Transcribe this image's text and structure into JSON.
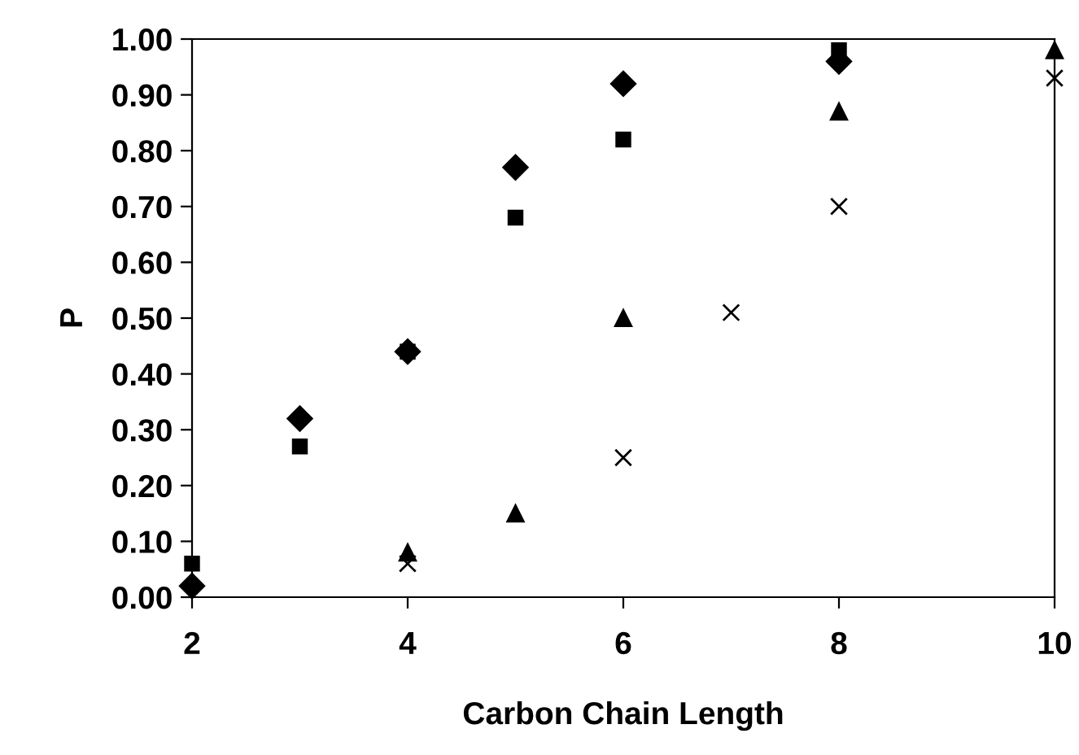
{
  "chart_data": {
    "type": "scatter",
    "xlabel": "Carbon Chain Length",
    "ylabel": "P",
    "xlim": [
      2,
      10
    ],
    "xticks": [
      2,
      4,
      6,
      8,
      10
    ],
    "ylim": [
      0,
      1
    ],
    "yticks": [
      {
        "value": 0,
        "label": "0.00"
      },
      {
        "value": 0.1,
        "label": "0.10"
      },
      {
        "value": 0.2,
        "label": "0.20"
      },
      {
        "value": 0.3,
        "label": "0.30"
      },
      {
        "value": 0.4,
        "label": "0.40"
      },
      {
        "value": 0.5,
        "label": "0.50"
      },
      {
        "value": 0.6,
        "label": "0.60"
      },
      {
        "value": 0.7,
        "label": "0.70"
      },
      {
        "value": 0.8,
        "label": "0.80"
      },
      {
        "value": 0.9,
        "label": "0.90"
      },
      {
        "value": 1,
        "label": "1.00"
      }
    ],
    "grid": false,
    "legend": false,
    "series": [
      {
        "color": "#000000",
        "marker": "diamond",
        "x": [
          2,
          3,
          4,
          5,
          6,
          8
        ],
        "values": [
          0.02,
          0.32,
          0.44,
          0.77,
          0.92,
          0.96
        ]
      },
      {
        "color": "#000000",
        "marker": "square",
        "x": [
          2,
          3,
          4,
          5,
          6,
          8
        ],
        "values": [
          0.06,
          0.27,
          0.44,
          0.68,
          0.82,
          0.98
        ]
      },
      {
        "color": "#000000",
        "marker": "triangle",
        "x": [
          4,
          5,
          6,
          8,
          10
        ],
        "values": [
          0.08,
          0.15,
          0.5,
          0.87,
          0.98
        ]
      },
      {
        "color": "#000000",
        "marker": "cross",
        "x": [
          4,
          6,
          7,
          8,
          10
        ],
        "values": [
          0.06,
          0.25,
          0.51,
          0.7,
          0.93
        ]
      }
    ]
  }
}
